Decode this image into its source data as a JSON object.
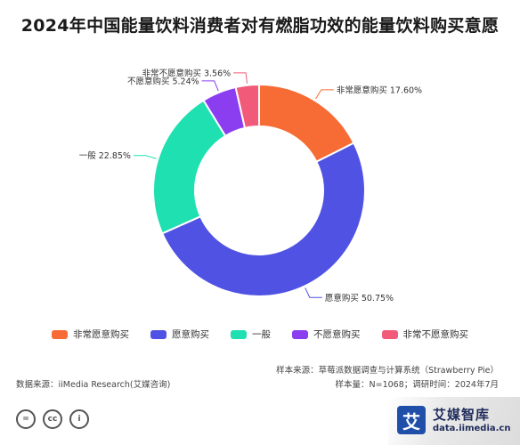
{
  "chart_data": {
    "type": "pie",
    "title": "2024年中国能量饮料消费者对有燃脂功效的能量饮料购买意愿",
    "categories": [
      "非常愿意购买",
      "愿意购买",
      "一般",
      "不愿意购买",
      "非常不愿意购买"
    ],
    "values": [
      17.6,
      50.75,
      22.85,
      5.24,
      3.56
    ],
    "labels": [
      "非常愿意购买 17.60%",
      "愿意购买 50.75%",
      "一般 22.85%",
      "不愿意购买 5.24%",
      "非常不愿意购买 3.56%"
    ],
    "colors": [
      "#f76b34",
      "#5052e3",
      "#1fe0b0",
      "#8b3df0",
      "#f25a7a"
    ],
    "donut": true,
    "legend_position": "bottom"
  },
  "notes": {
    "sample_source": "样本来源：草莓派数据调查与计算系统（Strawberry Pie）",
    "sample_size": "样本量：N=1068；调研时间：2024年7月",
    "data_source": "数据来源：iiMedia Research(艾媒咨询)"
  },
  "brand": {
    "logo_char": "艾",
    "name": "艾媒智库",
    "url": "data.iimedia.cn"
  },
  "license_icons": [
    "=",
    "cc",
    "i"
  ]
}
